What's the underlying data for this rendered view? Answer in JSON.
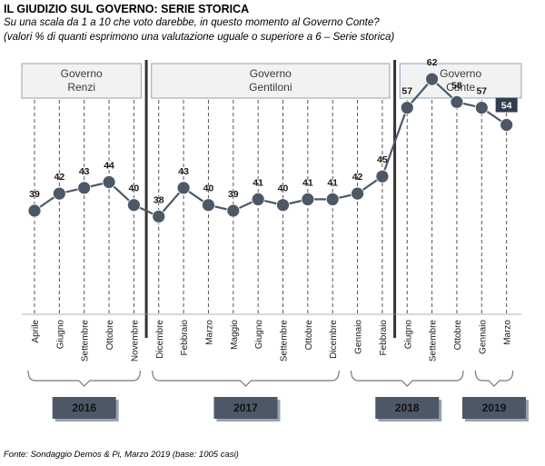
{
  "header": {
    "title": "IL GIUDIZIO SUL GOVERNO: SERIE STORICA",
    "subtitle_line1": "Su una scala da 1 a 10 che voto darebbe,  in questo momento al Governo Conte?",
    "subtitle_line2": "(valori % di quanti esprimono una valutazione uguale o superiore a 6 – Serie storica)"
  },
  "footer": {
    "source": "Fonte: Sondaggio Demos & Pi, Marzo 2019 (base: 1005 casi)"
  },
  "colors": {
    "line": "#4d5867",
    "marker": "#4d5867",
    "gov_box_fill": "#f2f2f2",
    "gov_box_stroke": "#8ea4bb",
    "year_box_fill": "#4d5867",
    "separator": "#333333",
    "grid": "#555555",
    "highlight_label_bg": "#2f3d52"
  },
  "chart_data": {
    "type": "line",
    "title": "",
    "xlabel": "",
    "ylabel": "",
    "categories": [
      "Aprile",
      "Giugno",
      "Settembre",
      "Ottobre",
      "Novembre",
      "Dicembre",
      "Febbraio",
      "Marzo",
      "Maggio",
      "Giugno",
      "Settembre",
      "Ottobre",
      "Dicembre",
      "Gennaio",
      "Febbraio",
      "Giugno",
      "Settembre",
      "Ottobre",
      "Gennaio",
      "Marzo"
    ],
    "series": [
      {
        "values": [
          39,
          42,
          43,
          44,
          40,
          38,
          43,
          40,
          39,
          41,
          40,
          41,
          41,
          42,
          45,
          57,
          62,
          58,
          57,
          54
        ]
      }
    ],
    "value_labels": [
      "39",
      "42",
      "43",
      "44",
      "40",
      "38",
      "43",
      "40",
      "39",
      "41",
      "40",
      "41",
      "41",
      "42",
      "45",
      "57",
      "62",
      "58",
      "57",
      "54"
    ],
    "highlighted_point": 19,
    "governments": [
      {
        "name": "Governo Renzi",
        "line1": "Governo",
        "line2": "Renzi",
        "first": 0,
        "last": 4
      },
      {
        "name": "Governo Gentiloni",
        "line1": "Governo",
        "line2": "Gentiloni",
        "first": 5,
        "last": 14
      },
      {
        "name": "Governo Conte",
        "line1": "Governo",
        "line2": "Conte",
        "first": 15,
        "last": 19
      }
    ],
    "years": [
      {
        "label": "2016",
        "first": 0,
        "last": 4
      },
      {
        "label": "2017",
        "first": 5,
        "last": 12
      },
      {
        "label": "2018",
        "first": 13,
        "last": 17
      },
      {
        "label": "2019",
        "first": 18,
        "last": 19
      }
    ],
    "government_changes_after": [
      4,
      14
    ],
    "ylim": [
      20,
      80
    ],
    "grid": true
  }
}
